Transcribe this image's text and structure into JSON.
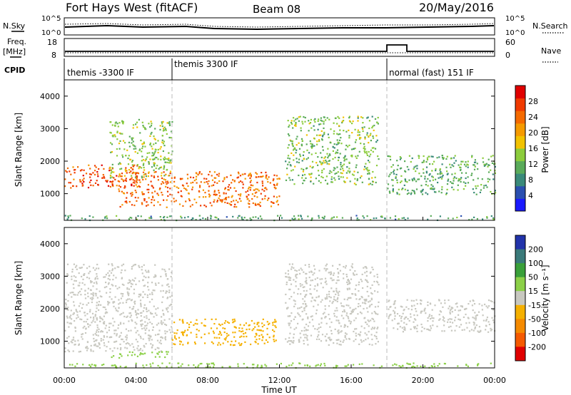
{
  "header": {
    "site": "Fort Hays West (fitACF)",
    "beam": "Beam 08",
    "date": "20/May/2016"
  },
  "strip_labels": {
    "nsky": "N.Sky",
    "nsearch": "N.Search",
    "freq": "Freq.",
    "freq_unit": "[MHz]",
    "nave": "Nave",
    "cpid": "CPID"
  },
  "strip_ticks": {
    "noise_top": "10^5",
    "noise_bottom": "10^0",
    "freq_top": "18",
    "freq_bottom": "8",
    "nave_top": "60",
    "nave_bottom": "0"
  },
  "cpid_segments": [
    {
      "label": "themis -3300 IF",
      "start_h": 0
    },
    {
      "label": "themis 3300 IF",
      "start_h": 6
    },
    {
      "label": "normal (fast) 151 IF",
      "start_h": 18
    }
  ],
  "time_axis": {
    "label": "Time UT",
    "ticks": [
      "00:00",
      "04:00",
      "08:00",
      "12:00",
      "16:00",
      "20:00",
      "00:00"
    ]
  },
  "range_axis": {
    "label": "Slant Range [km]",
    "ticks": [
      "1000",
      "2000",
      "3000",
      "4000"
    ],
    "ylim": [
      180,
      4500
    ]
  },
  "power_scale": {
    "label": "Power [dB]",
    "ticks": [
      "4",
      "8",
      "12",
      "16",
      "20",
      "24",
      "28"
    ],
    "colors": [
      "#1a1aff",
      "#2a4fb0",
      "#3a8a7a",
      "#5aab5a",
      "#8ccc3c",
      "#f2c200",
      "#f59a00",
      "#f56a00",
      "#f03a00",
      "#e00000"
    ]
  },
  "velocity_scale": {
    "label": "Velocity [m s⁻¹]",
    "ticks": [
      "200",
      "100",
      "50",
      "15",
      "-15",
      "-50",
      "-100",
      "-200"
    ],
    "colors": [
      "#2233aa",
      "#3a7a7a",
      "#3aa03a",
      "#8cd048",
      "#c8c8c0",
      "#f5b000",
      "#f58a00",
      "#f55a00",
      "#e00000"
    ]
  },
  "chart_data": [
    {
      "type": "heatmap",
      "title": "Power",
      "xlabel": "Time UT",
      "ylabel": "Slant Range [km]",
      "xlim": [
        0,
        24
      ],
      "ylim": [
        180,
        4500
      ],
      "colorbar": {
        "label": "Power [dB]",
        "range": [
          0,
          32
        ]
      },
      "regions": [
        {
          "t0": 0.0,
          "t1": 4.2,
          "r0": 1200,
          "r1": 1900,
          "value": 26
        },
        {
          "t0": 2.5,
          "t1": 6.0,
          "r0": 1500,
          "r1": 3300,
          "value": 14
        },
        {
          "t0": 3.0,
          "t1": 12.0,
          "r0": 600,
          "r1": 1700,
          "value": 24
        },
        {
          "t0": 12.3,
          "t1": 17.5,
          "r0": 1300,
          "r1": 3400,
          "value": 13
        },
        {
          "t0": 18.0,
          "t1": 24.0,
          "r0": 1000,
          "r1": 2200,
          "value": 11
        },
        {
          "t0": 0.0,
          "t1": 24.0,
          "r0": 200,
          "r1": 350,
          "value": 10
        }
      ]
    },
    {
      "type": "heatmap",
      "title": "Velocity",
      "xlabel": "Time UT",
      "ylabel": "Slant Range [km]",
      "xlim": [
        0,
        24
      ],
      "ylim": [
        180,
        4500
      ],
      "colorbar": {
        "label": "Velocity [m s⁻¹]",
        "range": [
          -200,
          200
        ]
      },
      "regions": [
        {
          "t0": 0.0,
          "t1": 6.0,
          "r0": 700,
          "r1": 3400,
          "value": 0
        },
        {
          "t0": 2.5,
          "t1": 6.0,
          "r0": 500,
          "r1": 700,
          "value": 30
        },
        {
          "t0": 6.0,
          "t1": 11.8,
          "r0": 900,
          "r1": 1700,
          "value": -60
        },
        {
          "t0": 12.3,
          "t1": 17.5,
          "r0": 900,
          "r1": 3400,
          "value": 0
        },
        {
          "t0": 18.0,
          "t1": 24.0,
          "r0": 1300,
          "r1": 2300,
          "value": 0
        },
        {
          "t0": 0.0,
          "t1": 24.0,
          "r0": 200,
          "r1": 350,
          "value": 40
        }
      ]
    }
  ]
}
